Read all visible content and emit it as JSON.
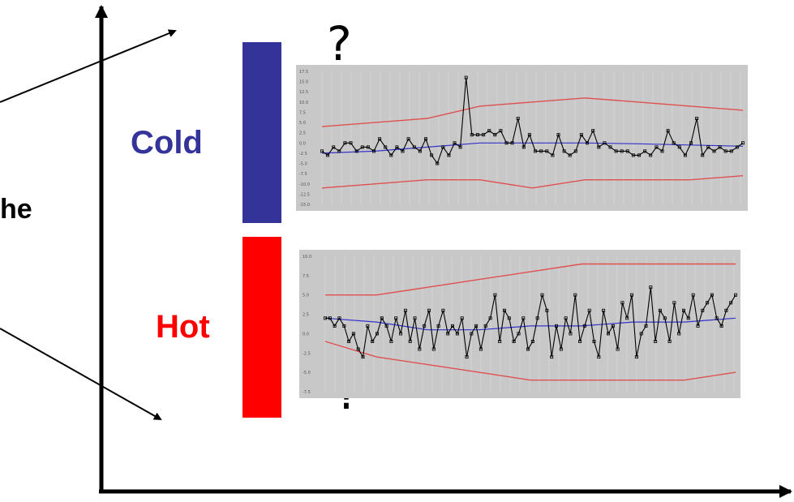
{
  "question_marks": {
    "top": "?",
    "bottom": "?"
  },
  "partial_word": "he",
  "labels": {
    "cold": "Cold",
    "hot": "Hot"
  },
  "colors": {
    "cold": "#333399",
    "hot": "#ff0000",
    "panel_bg": "#c8c8c8",
    "series_line": "#000000",
    "mean_line": "#3333cc",
    "limit_line": "#e05050"
  },
  "cold_chart": {
    "ytick_labels": [
      "17.5",
      "15.0",
      "12.5",
      "10.0",
      "7.5",
      "5.0",
      "2.5",
      "0.0",
      "-2.5",
      "-5.0",
      "-7.5",
      "-10.0",
      "-12.5",
      "-15.0"
    ],
    "ylim": [
      -15,
      17.5
    ],
    "series": [
      -2,
      -3,
      -1,
      -2,
      0,
      0,
      -2,
      -1,
      -1,
      -2,
      1,
      -1,
      -3,
      -1,
      -2,
      1,
      -1,
      -2,
      1,
      -3,
      -5,
      -1,
      -3,
      0,
      -1,
      16,
      2,
      2,
      2,
      3,
      2,
      3,
      0,
      0,
      6,
      -1,
      2,
      -2,
      -2,
      -2,
      -3,
      2,
      -2,
      -3,
      -2,
      2,
      0,
      3,
      -1,
      0,
      -1,
      -2,
      -2,
      -2,
      -3,
      -3,
      -2,
      -3,
      -1,
      -2,
      3,
      0,
      -1,
      -3,
      0,
      6,
      -3,
      -1,
      -2,
      -1,
      -2,
      -2,
      -1,
      0
    ],
    "mean": [
      -2.5,
      -2.0,
      -1.0,
      0.0,
      0.0,
      0.0,
      -0.2,
      -0.5,
      -0.8
    ],
    "upper": [
      4,
      5,
      6,
      9,
      10,
      11,
      10,
      9,
      8
    ],
    "lower": [
      -11,
      -10,
      -9,
      -9,
      -11,
      -9,
      -9,
      -9,
      -8
    ]
  },
  "hot_chart": {
    "ytick_labels": [
      "10.0",
      "7.5",
      "5.0",
      "2.5",
      "0.0",
      "-2.5",
      "-5.0",
      "-7.5"
    ],
    "ylim": [
      -7.5,
      10
    ],
    "series": [
      2,
      2,
      1,
      2,
      1,
      -1,
      0,
      -2,
      -3,
      1,
      -1,
      0,
      2,
      1,
      -1,
      2,
      0,
      3,
      -1,
      2,
      -2,
      1,
      3,
      -2,
      1,
      3,
      0,
      1,
      0,
      2,
      -3,
      0,
      1,
      -2,
      1,
      2,
      5,
      -1,
      3,
      2,
      -1,
      0,
      2,
      -2,
      -1,
      2,
      5,
      3,
      -3,
      1,
      -2,
      2,
      0,
      5,
      -1,
      1,
      3,
      -1,
      -3,
      3,
      0,
      1,
      -2,
      4,
      2,
      5,
      -3,
      0,
      1,
      6,
      -1,
      3,
      2,
      -1,
      4,
      0,
      3,
      2,
      5,
      1,
      3,
      4,
      5,
      2,
      1,
      3,
      4,
      5
    ],
    "mean": [
      2,
      1.5,
      0.5,
      0.5,
      1.0,
      1.0,
      1.5,
      1.5,
      2.0
    ],
    "upper": [
      5,
      5,
      6,
      7,
      8,
      9,
      9,
      9,
      9
    ],
    "lower": [
      -1,
      -3,
      -4,
      -5,
      -6,
      -6,
      -6,
      -6,
      -5
    ]
  }
}
